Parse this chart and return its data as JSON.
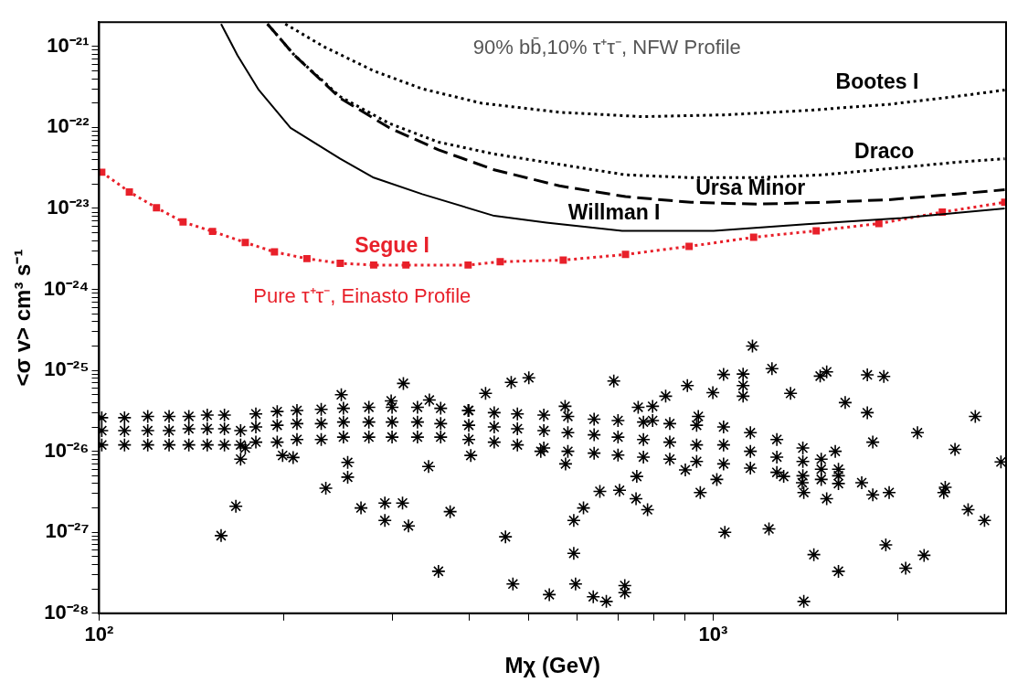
{
  "chart_data": {
    "type": "line",
    "xlabel": "Mχ (GeV)",
    "ylabel": "<σ v> cm³ s⁻¹",
    "log": "xy",
    "grid": false,
    "legend": false,
    "annotations": [
      "90% bb̄,10% τ⁺τ⁻, NFW Profile",
      "Pure τ⁺τ⁻, Einasto Profile"
    ],
    "xlim": [
      100,
      3000
    ],
    "xticks": [
      {
        "value": 100,
        "label": "10²"
      },
      {
        "value": 200,
        "label": null
      },
      {
        "value": 300,
        "label": null
      },
      {
        "value": 400,
        "label": null
      },
      {
        "value": 500,
        "label": null
      },
      {
        "value": 600,
        "label": null
      },
      {
        "value": 700,
        "label": null
      },
      {
        "value": 800,
        "label": null
      },
      {
        "value": 900,
        "label": null
      },
      {
        "value": 1000,
        "label": "10³"
      },
      {
        "value": 2000,
        "label": null
      }
    ],
    "ylim": [
      1e-28,
      2e-21
    ],
    "yticks": [
      {
        "value": 1e-28,
        "label": "10⁻²⁸"
      },
      {
        "value": 2e-28,
        "label": null
      },
      {
        "value": 3e-28,
        "label": null
      },
      {
        "value": 4e-28,
        "label": null
      },
      {
        "value": 5e-28,
        "label": null
      },
      {
        "value": 6e-28,
        "label": null
      },
      {
        "value": 7e-28,
        "label": null
      },
      {
        "value": 8e-28,
        "label": null
      },
      {
        "value": 9e-28,
        "label": null
      },
      {
        "value": 1e-27,
        "label": "10⁻²⁷"
      },
      {
        "value": 2e-27,
        "label": null
      },
      {
        "value": 3e-27,
        "label": null
      },
      {
        "value": 4e-27,
        "label": null
      },
      {
        "value": 5e-27,
        "label": null
      },
      {
        "value": 6e-27,
        "label": null
      },
      {
        "value": 7e-27,
        "label": null
      },
      {
        "value": 8e-27,
        "label": null
      },
      {
        "value": 9e-27,
        "label": null
      },
      {
        "value": 1e-26,
        "label": "10⁻²⁶"
      },
      {
        "value": 2e-26,
        "label": null
      },
      {
        "value": 3e-26,
        "label": null
      },
      {
        "value": 4e-26,
        "label": null
      },
      {
        "value": 5e-26,
        "label": null
      },
      {
        "value": 6e-26,
        "label": null
      },
      {
        "value": 7e-26,
        "label": null
      },
      {
        "value": 8e-26,
        "label": null
      },
      {
        "value": 9e-26,
        "label": null
      },
      {
        "value": 1e-25,
        "label": "10⁻²⁵"
      },
      {
        "value": 2e-25,
        "label": null
      },
      {
        "value": 3e-25,
        "label": null
      },
      {
        "value": 4e-25,
        "label": null
      },
      {
        "value": 5e-25,
        "label": null
      },
      {
        "value": 6e-25,
        "label": null
      },
      {
        "value": 7e-25,
        "label": null
      },
      {
        "value": 8e-25,
        "label": null
      },
      {
        "value": 9e-25,
        "label": null
      },
      {
        "value": 1e-24,
        "label": "10⁻²⁴"
      },
      {
        "value": 2e-24,
        "label": null
      },
      {
        "value": 3e-24,
        "label": null
      },
      {
        "value": 4e-24,
        "label": null
      },
      {
        "value": 5e-24,
        "label": null
      },
      {
        "value": 6e-24,
        "label": null
      },
      {
        "value": 7e-24,
        "label": null
      },
      {
        "value": 8e-24,
        "label": null
      },
      {
        "value": 9e-24,
        "label": null
      },
      {
        "value": 1e-23,
        "label": "10⁻²³"
      },
      {
        "value": 2e-23,
        "label": null
      },
      {
        "value": 3e-23,
        "label": null
      },
      {
        "value": 4e-23,
        "label": null
      },
      {
        "value": 5e-23,
        "label": null
      },
      {
        "value": 6e-23,
        "label": null
      },
      {
        "value": 7e-23,
        "label": null
      },
      {
        "value": 8e-23,
        "label": null
      },
      {
        "value": 9e-23,
        "label": null
      },
      {
        "value": 1e-22,
        "label": "10⁻²²"
      },
      {
        "value": 2e-22,
        "label": null
      },
      {
        "value": 3e-22,
        "label": null
      },
      {
        "value": 4e-22,
        "label": null
      },
      {
        "value": 5e-22,
        "label": null
      },
      {
        "value": 6e-22,
        "label": null
      },
      {
        "value": 7e-22,
        "label": null
      },
      {
        "value": 8e-22,
        "label": null
      },
      {
        "value": 9e-22,
        "label": null
      },
      {
        "value": 1e-21,
        "label": "10⁻²¹"
      }
    ],
    "series": [
      {
        "name": "Bootes I",
        "type": "line",
        "color": "#000000",
        "line_style": "dotted",
        "marker": "none",
        "x": [
          201,
          232,
          280,
          336,
          419,
          562,
          767,
          1042,
          1416,
          1933,
          2471,
          2985
        ],
        "values": [
          1.9e-21,
          1e-21,
          5e-22,
          3e-22,
          2e-22,
          1.54e-22,
          1.36e-22,
          1.43e-22,
          1.62e-22,
          1.93e-22,
          2.4e-22,
          2.9e-22
        ]
      },
      {
        "name": "Draco",
        "type": "line",
        "color": "#000000",
        "line_style": "dotted",
        "marker": "none",
        "x": [
          188,
          208,
          247,
          297,
          357,
          440,
          562,
          720,
          921,
          1180,
          1508,
          1933,
          2471,
          2985
        ],
        "values": [
          1.9e-21,
          7.8e-22,
          2.4e-22,
          1.12e-22,
          6.6e-23,
          4.7e-23,
          3.5e-23,
          2.6e-23,
          2.4e-23,
          2.4e-23,
          2.6e-23,
          3.1e-23,
          3.7e-23,
          4.1e-23
        ]
      },
      {
        "name": "Ursa Minor",
        "type": "line",
        "color": "#000000",
        "line_style": "dashed",
        "marker": "none",
        "x": [
          188,
          208,
          247,
          297,
          357,
          440,
          562,
          720,
          921,
          1180,
          1508,
          1933,
          2471,
          2985
        ],
        "values": [
          1.9e-21,
          7.8e-22,
          2.3e-22,
          9.9e-23,
          5.3e-23,
          3e-23,
          1.9e-23,
          1.4e-23,
          1.19e-23,
          1.13e-23,
          1.19e-23,
          1.28e-23,
          1.5e-23,
          1.7e-23
        ]
      },
      {
        "name": "Willman I",
        "type": "line",
        "color": "#000000",
        "line_style": "solid",
        "marker": "none",
        "x": [
          158,
          168,
          182,
          205,
          247,
          280,
          336,
          440,
          535,
          711,
          1002,
          1416,
          2028,
          2985
        ],
        "values": [
          1.9e-21,
          7.8e-22,
          2.9e-22,
          9.9e-23,
          4.1e-23,
          2.4e-23,
          1.5e-23,
          8.1e-24,
          6.7e-24,
          5.3e-24,
          5.3e-24,
          6.4e-24,
          7.6e-24,
          1e-23
        ]
      },
      {
        "name": "Segue I",
        "type": "line",
        "color": "#e8202a",
        "line_style": "dotted",
        "marker": "square",
        "x": [
          101,
          112,
          124,
          137,
          153,
          173,
          193,
          218,
          247,
          280,
          316,
          399,
          450,
          570,
          720,
          914,
          1164,
          1472,
          1862,
          2362,
          2985
        ],
        "values": [
          2.8e-23,
          1.6e-23,
          1.02e-23,
          6.8e-24,
          5.2e-24,
          3.8e-24,
          2.9e-24,
          2.4e-24,
          2.1e-24,
          2e-24,
          2e-24,
          2e-24,
          2.2e-24,
          2.3e-24,
          2.7e-24,
          3.4e-24,
          4.4e-24,
          5.3e-24,
          6.5e-24,
          9e-24,
          1.19e-23
        ]
      },
      {
        "type": "scatter",
        "color": "#000000",
        "marker": "cross",
        "x": [
          101,
          101,
          101,
          110,
          110,
          110,
          120,
          120,
          120,
          130,
          130,
          130,
          140,
          140,
          140,
          150,
          150,
          150,
          160,
          160,
          160,
          170,
          170,
          170,
          180,
          180,
          180,
          195,
          195,
          195,
          210,
          210,
          210,
          230,
          230,
          230,
          250,
          250,
          250,
          275,
          275,
          275,
          300,
          300,
          300,
          330,
          330,
          330,
          360,
          360,
          360,
          400,
          400,
          400,
          440,
          440,
          440,
          480,
          480,
          480,
          530,
          530,
          530,
          580,
          580,
          580,
          640,
          640,
          640,
          700,
          700,
          700,
          770,
          770,
          770,
          850,
          850,
          850,
          940,
          940,
          940,
          1040,
          1040,
          1040,
          1150,
          1150,
          1150,
          1270,
          1270,
          1270,
          1400,
          1400,
          1400,
          1500,
          1500,
          1500,
          1600,
          1600,
          1600
        ],
        "values": [
          2.6e-26,
          1.8e-26,
          1.2e-26,
          2.6e-26,
          1.8e-26,
          1.2e-26,
          2.7e-26,
          1.8e-26,
          1.2e-26,
          2.7e-26,
          1.8e-26,
          1.2e-26,
          2.7e-26,
          1.9e-26,
          1.2e-26,
          2.8e-26,
          1.9e-26,
          1.2e-26,
          2.8e-26,
          1.9e-26,
          1.2e-26,
          1.8e-26,
          1.2e-26,
          8e-27,
          2.9e-26,
          2e-26,
          1.3e-26,
          3.1e-26,
          2.1e-26,
          1.3e-26,
          3.2e-26,
          2.2e-26,
          1.4e-26,
          3.3e-26,
          2.2e-26,
          1.4e-26,
          3.4e-26,
          2.3e-26,
          1.5e-26,
          3.5e-26,
          2.3e-26,
          1.5e-26,
          3.5e-26,
          2.3e-26,
          1.5e-26,
          3.5e-26,
          2.3e-26,
          1.5e-26,
          3.4e-26,
          2.2e-26,
          1.5e-26,
          3.2e-26,
          2.1e-26,
          1.4e-26,
          3e-26,
          2e-26,
          1.3e-26,
          2.9e-26,
          1.9e-26,
          1.2e-26,
          2.8e-26,
          1.8e-26,
          1.1e-26,
          2.7e-26,
          1.7e-26,
          1e-26,
          2.5e-26,
          1.6e-26,
          9.5e-27,
          2.4e-26,
          1.5e-26,
          9e-27,
          2.3e-26,
          1.4e-26,
          8.5e-27,
          2.2e-26,
          1.3e-26,
          8e-27,
          2.1e-26,
          1.2e-26,
          7.5e-27,
          2e-26,
          1.2e-26,
          7e-27,
          1.7e-26,
          1e-26,
          6.2e-27,
          1.4e-26,
          8.5e-27,
          5.5e-27,
          1.1e-26,
          7.5e-27,
          5e-27,
          8e-27,
          6e-27,
          4.5e-27,
          6e-27,
          5e-27,
          4e-27
        ]
      },
      {
        "type": "scatter",
        "color": "#000000",
        "marker": "cross",
        "x": [
          158,
          167,
          207,
          234,
          254,
          254,
          267,
          292,
          292,
          312,
          319,
          344,
          373,
          357,
          459,
          472,
          541,
          597,
          593,
          593,
          615,
          654,
          638,
          670,
          704,
          718,
          718,
          749,
          782,
          751,
          953,
          1045,
          1233,
          1405,
          1459,
          1405,
          1600,
          1911,
          2059,
          2206,
          2375,
          2602,
          2767,
          2943,
          2477,
          2152,
          1820,
          1783,
          1641,
          1783,
          1897,
          1531,
          1494,
          1337,
          1247,
          1119,
          1040,
          1159,
          1119,
          1119,
          999,
          908,
          837,
          797,
          689,
          501,
          469,
          426,
          399,
          345,
          313,
          299,
          248,
          173,
          199,
          403,
          524,
          574,
          575,
          755,
          797,
          946,
          1397,
          1746,
          1820,
          1935,
          2388,
          2673,
          1531,
          1581,
          1303,
          901,
          1014
        ],
        "values": [
          9.1e-28,
          2.1e-27,
          8.4e-27,
          3.5e-27,
          7.3e-27,
          4.8e-27,
          2e-27,
          2.3e-27,
          1.4e-27,
          2.3e-27,
          1.2e-27,
          6.5e-27,
          1.8e-27,
          3.3e-28,
          8.8e-28,
          2.3e-28,
          1.7e-28,
          2.3e-28,
          5.5e-28,
          1.4e-27,
          2e-27,
          3.2e-27,
          1.6e-28,
          1.4e-28,
          3.3e-27,
          1.8e-28,
          2.2e-28,
          2.6e-27,
          1.9e-27,
          4.9e-27,
          3.1e-27,
          1e-27,
          1.1e-27,
          3.1e-27,
          5.3e-28,
          1.4e-28,
          3.3e-28,
          7e-28,
          3.6e-28,
          5.2e-28,
          3.1e-27,
          1.9e-27,
          1.4e-27,
          7.4e-27,
          1.06e-26,
          1.7e-26,
          1.3e-26,
          3e-26,
          4e-26,
          8.8e-26,
          8.4e-26,
          9.6e-26,
          8.5e-26,
          5.2e-26,
          1.05e-25,
          9e-26,
          8.9e-26,
          2e-25,
          6.5e-26,
          4.8e-26,
          5.3e-26,
          6.5e-26,
          4.8e-26,
          3.6e-26,
          7.4e-26,
          8.1e-26,
          7.1e-26,
          5.2e-26,
          3.2e-26,
          4.3e-26,
          6.9e-26,
          4.2e-26,
          5e-26,
          1.1e-26,
          8.9e-27,
          8.9e-27,
          1e-26,
          3.6e-26,
          7e-27,
          3.5e-26,
          2.4e-26,
          2.7e-26,
          4.1e-27,
          4.1e-27,
          2.9e-27,
          3.1e-27,
          3.6e-27,
          2.7e-26,
          2.6e-27,
          1e-26,
          4.9e-27,
          5.9e-27,
          4.5e-27
        ]
      }
    ]
  }
}
